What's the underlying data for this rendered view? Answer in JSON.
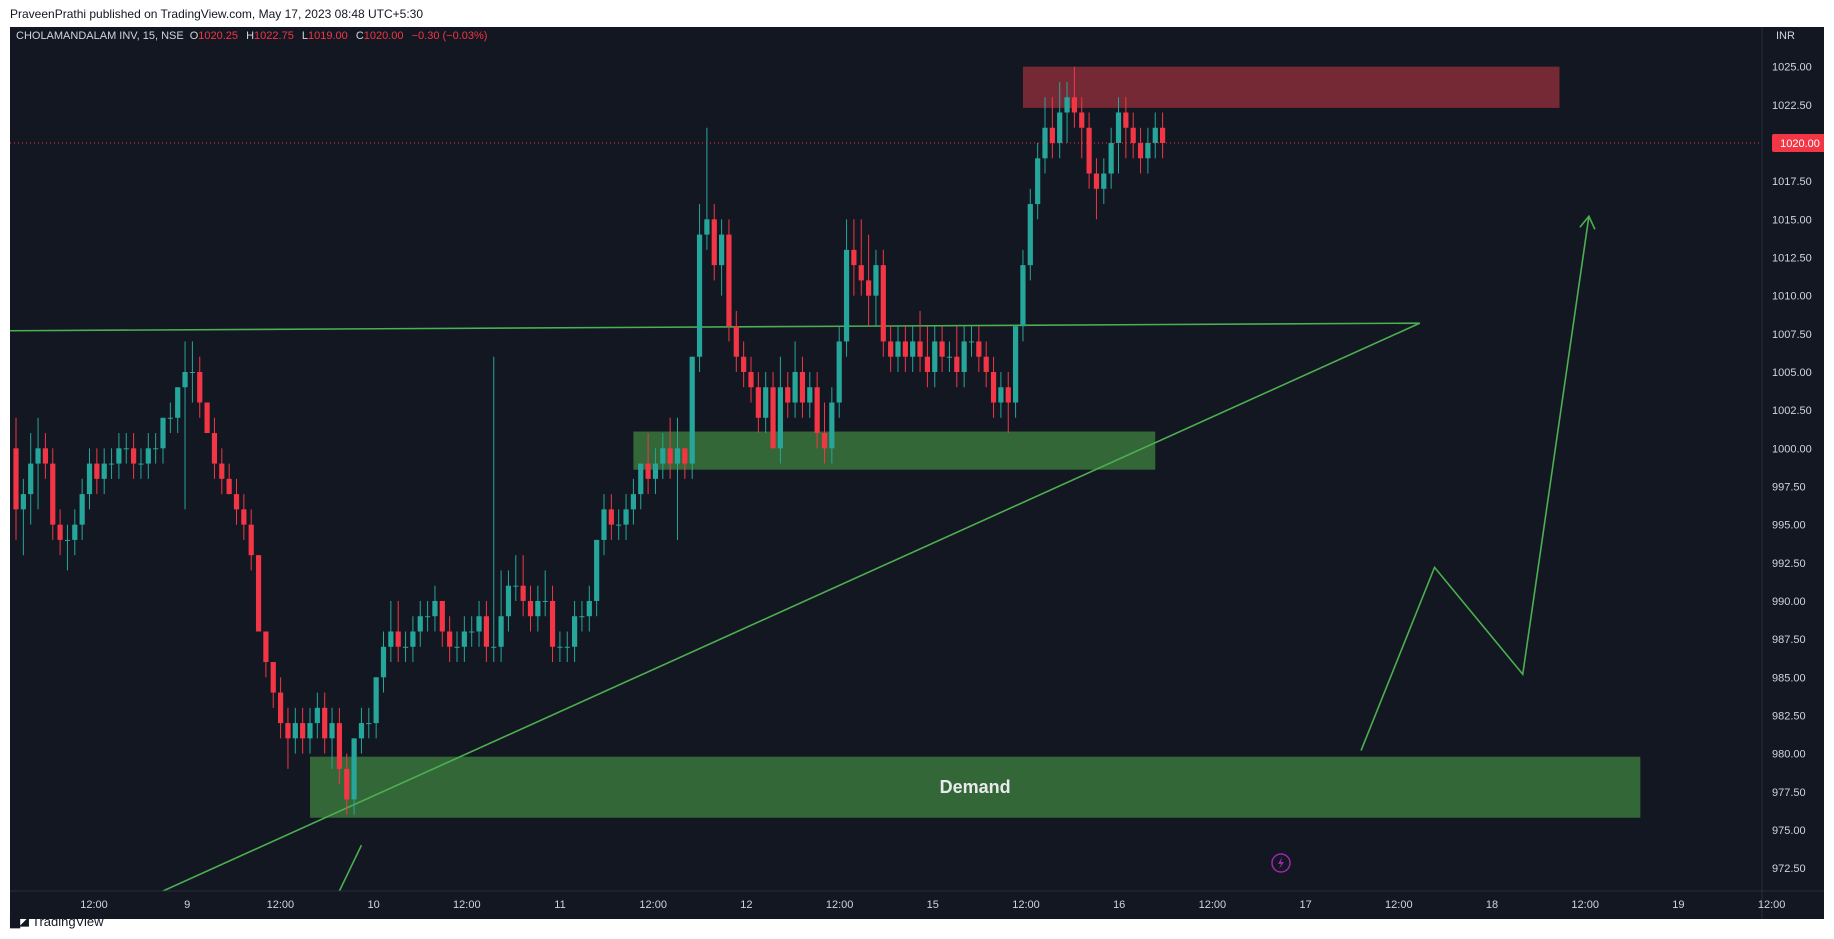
{
  "published": "PraveenPrathi published on TradingView.com, May 17, 2023 08:48 UTC+5:30",
  "footer": {
    "brand": "TradingView"
  },
  "colors": {
    "background": "#131722",
    "up": "#26a69a",
    "down": "#f23645",
    "trendline": "#4caf50",
    "demand_zone": "#356b3a",
    "supply_zone": "#7a2a36",
    "axis_text": "#d1d4dc"
  },
  "chart_data": {
    "type": "candlestick",
    "symbol": "CHOLAMANDALAM INV, 15, NSE",
    "ohlc": {
      "open_label": "O",
      "open": "1020.25",
      "high_label": "H",
      "high": "1022.75",
      "low_label": "L",
      "low": "1019.00",
      "close_label": "C",
      "close": "1020.00",
      "change": "−0.30 (−0.03%)"
    },
    "currency": "INR",
    "last_price_label": "1020.00",
    "last_price": 1020.0,
    "ylim": [
      971.0,
      1027.6
    ],
    "y_ticks": [
      "1025.00",
      "1022.50",
      "1020.00",
      "1017.50",
      "1015.00",
      "1012.50",
      "1010.00",
      "1007.50",
      "1005.00",
      "1002.50",
      "1000.00",
      "997.50",
      "995.00",
      "992.50",
      "990.00",
      "987.50",
      "985.00",
      "982.50",
      "980.00",
      "977.50",
      "975.00",
      "972.50"
    ],
    "x_ticks": [
      "12:00",
      "9",
      "12:00",
      "10",
      "12:00",
      "11",
      "12:00",
      "12",
      "12:00",
      "15",
      "12:00",
      "16",
      "12:00",
      "17",
      "12:00",
      "18",
      "12:00",
      "19",
      "12:00"
    ],
    "candles": [
      [
        1000,
        1002,
        994,
        996
      ],
      [
        996,
        998,
        993,
        997
      ],
      [
        997,
        1001,
        995,
        999
      ],
      [
        999,
        1002,
        996,
        1000
      ],
      [
        1000,
        1001,
        998,
        999
      ],
      [
        999,
        1000,
        994,
        995
      ],
      [
        995,
        996,
        993,
        994
      ],
      [
        994,
        995,
        992,
        994
      ],
      [
        994,
        996,
        993,
        995
      ],
      [
        995,
        998,
        994,
        997
      ],
      [
        997,
        1000,
        996,
        999
      ],
      [
        999,
        1000,
        997,
        998
      ],
      [
        998,
        1000,
        997,
        999
      ],
      [
        999,
        1000,
        998,
        999
      ],
      [
        999,
        1001,
        998,
        1000
      ],
      [
        1000,
        1001,
        999,
        1000
      ],
      [
        1000,
        1001,
        998,
        999
      ],
      [
        999,
        1000,
        998,
        999
      ],
      [
        999,
        1001,
        998,
        1000
      ],
      [
        1000,
        1001,
        999,
        1000
      ],
      [
        1000,
        1002,
        999,
        1002
      ],
      [
        1002,
        1003,
        1001,
        1002
      ],
      [
        1002,
        1004,
        1001,
        1004
      ],
      [
        1004,
        1007,
        996,
        1005
      ],
      [
        1005,
        1007,
        1003,
        1005
      ],
      [
        1005,
        1006,
        1002,
        1003
      ],
      [
        1003,
        1003,
        1001,
        1001
      ],
      [
        1001,
        1002,
        998,
        999
      ],
      [
        999,
        1000,
        997,
        998
      ],
      [
        998,
        999,
        997,
        997
      ],
      [
        997,
        998,
        995,
        996
      ],
      [
        996,
        997,
        994,
        995
      ],
      [
        995,
        996,
        992,
        993
      ],
      [
        993,
        993,
        988,
        988
      ],
      [
        988,
        988,
        985,
        986
      ],
      [
        986,
        986,
        983,
        984
      ],
      [
        984,
        985,
        981,
        982
      ],
      [
        982,
        983,
        979,
        981
      ],
      [
        981,
        983,
        980,
        982
      ],
      [
        982,
        983,
        980,
        981
      ],
      [
        981,
        983,
        980,
        982
      ],
      [
        982,
        984,
        981,
        983
      ],
      [
        983,
        984,
        980,
        981
      ],
      [
        981,
        983,
        979,
        982
      ],
      [
        982,
        983,
        978,
        979
      ],
      [
        979,
        980,
        976,
        977
      ],
      [
        977,
        981,
        976,
        981
      ],
      [
        981,
        983,
        980,
        982
      ],
      [
        982,
        983,
        981,
        982
      ],
      [
        982,
        985,
        981,
        985
      ],
      [
        985,
        988,
        984,
        987
      ],
      [
        987,
        990,
        986,
        988
      ],
      [
        988,
        990,
        986,
        987
      ],
      [
        987,
        988,
        986,
        987
      ],
      [
        987,
        989,
        986,
        988
      ],
      [
        988,
        990,
        987,
        989
      ],
      [
        989,
        990,
        988,
        989
      ],
      [
        989,
        991,
        988,
        990
      ],
      [
        990,
        990,
        987,
        988
      ],
      [
        988,
        989,
        986,
        987
      ],
      [
        987,
        988,
        986,
        987
      ],
      [
        987,
        989,
        986,
        988
      ],
      [
        988,
        989,
        987,
        988
      ],
      [
        988,
        990,
        987,
        989
      ],
      [
        989,
        990,
        986,
        987
      ],
      [
        987,
        1006,
        986,
        987
      ],
      [
        987,
        992,
        986,
        989
      ],
      [
        989,
        992,
        988,
        991
      ],
      [
        991,
        993,
        990,
        991
      ],
      [
        991,
        993,
        989,
        990
      ],
      [
        990,
        991,
        988,
        989
      ],
      [
        989,
        991,
        988,
        990
      ],
      [
        990,
        992,
        989,
        990
      ],
      [
        990,
        991,
        986,
        987
      ],
      [
        987,
        988,
        986,
        987
      ],
      [
        987,
        988,
        986,
        987
      ],
      [
        987,
        990,
        986,
        989
      ],
      [
        989,
        990,
        988,
        989
      ],
      [
        989,
        991,
        988,
        990
      ],
      [
        990,
        994,
        989,
        994
      ],
      [
        994,
        997,
        993,
        996
      ],
      [
        996,
        997,
        994,
        995
      ],
      [
        995,
        996,
        994,
        995
      ],
      [
        995,
        997,
        994,
        996
      ],
      [
        996,
        998,
        995,
        997
      ],
      [
        997,
        999,
        996,
        999
      ],
      [
        999,
        1001,
        997,
        998
      ],
      [
        998,
        1000,
        997,
        999
      ],
      [
        999,
        1001,
        998,
        1000
      ],
      [
        1000,
        1002,
        998,
        999
      ],
      [
        999,
        1002,
        994,
        1000
      ],
      [
        1000,
        1000,
        998,
        999
      ],
      [
        999,
        1006,
        998,
        1006
      ],
      [
        1006,
        1016,
        1005,
        1014
      ],
      [
        1014,
        1021,
        1013,
        1015
      ],
      [
        1015,
        1016,
        1011,
        1012
      ],
      [
        1012,
        1015,
        1010,
        1014
      ],
      [
        1014,
        1015,
        1007,
        1008
      ],
      [
        1008,
        1009,
        1005,
        1006
      ],
      [
        1006,
        1007,
        1004,
        1005
      ],
      [
        1005,
        1006,
        1003,
        1004
      ],
      [
        1004,
        1005,
        1001,
        1002
      ],
      [
        1002,
        1005,
        1001,
        1004
      ],
      [
        1004,
        1005,
        1000,
        1000
      ],
      [
        1000,
        1006,
        999,
        1004
      ],
      [
        1004,
        1005,
        1002,
        1003
      ],
      [
        1003,
        1007,
        1002,
        1005
      ],
      [
        1005,
        1006,
        1002,
        1003
      ],
      [
        1003,
        1005,
        1002,
        1004
      ],
      [
        1004,
        1005,
        1000,
        1001
      ],
      [
        1001,
        1003,
        999,
        1000
      ],
      [
        1000,
        1004,
        999,
        1003
      ],
      [
        1003,
        1008,
        1002,
        1007
      ],
      [
        1007,
        1015,
        1006,
        1013
      ],
      [
        1013,
        1015,
        1010,
        1012
      ],
      [
        1012,
        1015,
        1010,
        1011
      ],
      [
        1011,
        1014,
        1008,
        1010
      ],
      [
        1010,
        1013,
        1008,
        1012
      ],
      [
        1012,
        1013,
        1006,
        1007
      ],
      [
        1007,
        1008,
        1005,
        1006
      ],
      [
        1006,
        1008,
        1005,
        1007
      ],
      [
        1007,
        1008,
        1005,
        1006
      ],
      [
        1006,
        1008,
        1005,
        1007
      ],
      [
        1007,
        1009,
        1005,
        1006
      ],
      [
        1006,
        1008,
        1004,
        1005
      ],
      [
        1005,
        1008,
        1004,
        1007
      ],
      [
        1007,
        1008,
        1005,
        1006
      ],
      [
        1006,
        1007,
        1005,
        1006
      ],
      [
        1006,
        1008,
        1004,
        1005
      ],
      [
        1005,
        1008,
        1004,
        1007
      ],
      [
        1007,
        1008,
        1006,
        1007
      ],
      [
        1007,
        1008,
        1005,
        1006
      ],
      [
        1006,
        1007,
        1004,
        1005
      ],
      [
        1005,
        1006,
        1002,
        1003
      ],
      [
        1003,
        1005,
        1002,
        1004
      ],
      [
        1004,
        1005,
        1001,
        1003
      ],
      [
        1003,
        1008,
        1002,
        1008
      ],
      [
        1008,
        1013,
        1007,
        1012
      ],
      [
        1012,
        1017,
        1011,
        1016
      ],
      [
        1016,
        1020,
        1015,
        1019
      ],
      [
        1019,
        1023,
        1018,
        1021
      ],
      [
        1021,
        1023,
        1019,
        1020
      ],
      [
        1020,
        1024,
        1019,
        1022
      ],
      [
        1022,
        1024,
        1020,
        1023
      ],
      [
        1023,
        1025,
        1021,
        1022
      ],
      [
        1022,
        1023,
        1019,
        1021
      ],
      [
        1021,
        1022,
        1017,
        1018
      ],
      [
        1018,
        1019,
        1015,
        1017
      ],
      [
        1017,
        1019,
        1016,
        1018
      ],
      [
        1018,
        1021,
        1017,
        1020
      ],
      [
        1020,
        1023,
        1018,
        1022
      ],
      [
        1022,
        1023,
        1019,
        1021
      ],
      [
        1021,
        1022,
        1019,
        1020
      ],
      [
        1020,
        1021,
        1018,
        1019
      ],
      [
        1019,
        1021,
        1018,
        1020
      ],
      [
        1020,
        1022,
        1019,
        1021
      ],
      [
        1021,
        1022,
        1019,
        1020
      ]
    ],
    "zones": [
      {
        "kind": "supply",
        "label": "",
        "low": 1022.3,
        "high": 1025.0,
        "start": 137,
        "end": 210
      },
      {
        "kind": "demand",
        "label": "",
        "low": 998.6,
        "high": 1001.1,
        "start": 84,
        "end": 155
      },
      {
        "kind": "demand",
        "label": "Demand",
        "low": 975.8,
        "high": 979.8,
        "start": 40,
        "end": 221
      }
    ],
    "trendlines": [
      {
        "from": [
          -1.5,
          1007.7
        ],
        "to": [
          191,
          1008.2
        ]
      },
      {
        "from": [
          20,
          971.0
        ],
        "to": [
          191,
          1008.2
        ]
      }
    ],
    "projection_path": [
      [
        183,
        980.2
      ],
      [
        193,
        992.2
      ],
      [
        205,
        985.2
      ],
      [
        214,
        1015.2
      ]
    ],
    "projection_tail": [
      [
        44,
        971.0
      ],
      [
        47,
        974.0
      ]
    ]
  }
}
